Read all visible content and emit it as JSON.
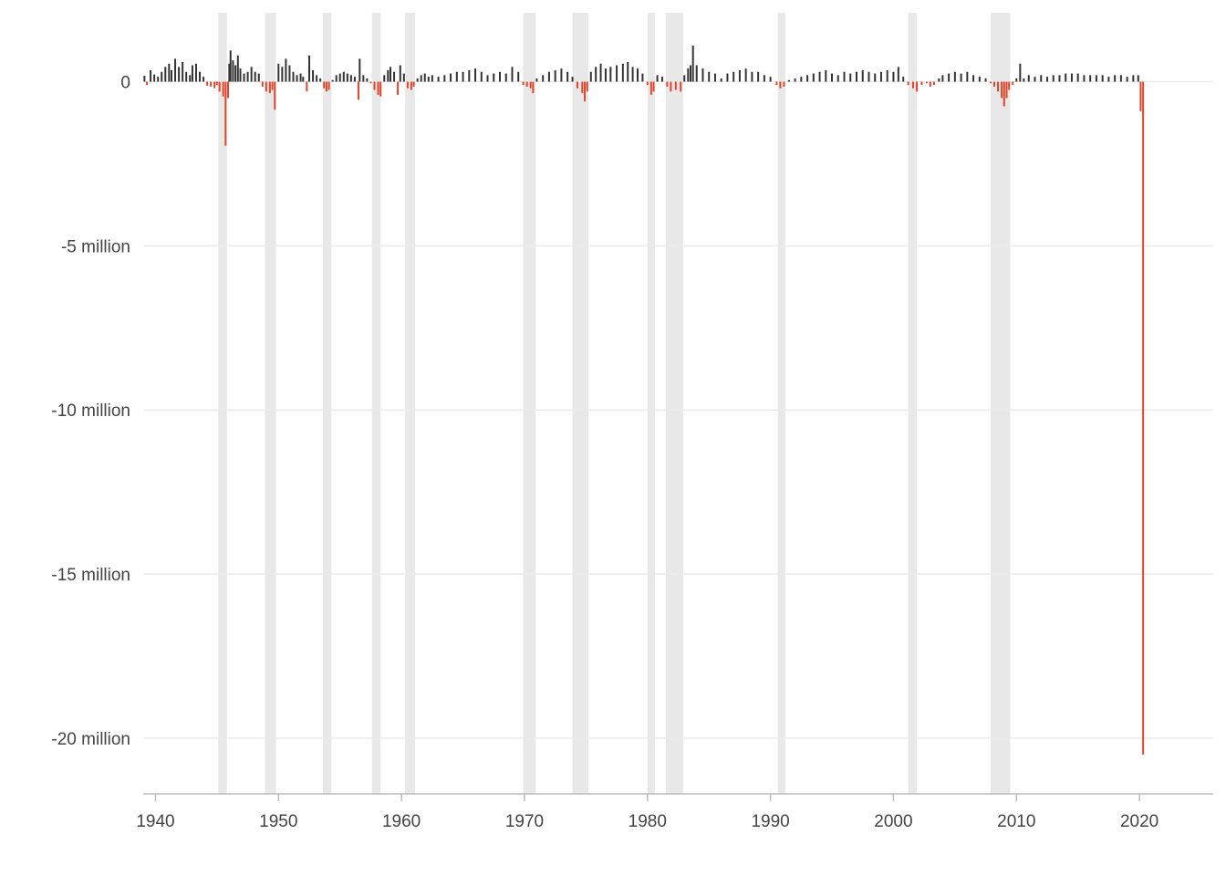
{
  "chart_data": {
    "type": "bar",
    "title": "",
    "xlabel": "",
    "ylabel": "",
    "x_range": [
      1939.0,
      2026.0
    ],
    "ylim": [
      -21.7,
      2.1
    ],
    "y_unit": "million",
    "x_ticks": [
      {
        "value": 1940,
        "label": "1940"
      },
      {
        "value": 1950,
        "label": "1950"
      },
      {
        "value": 1960,
        "label": "1960"
      },
      {
        "value": 1970,
        "label": "1970"
      },
      {
        "value": 1980,
        "label": "1980"
      },
      {
        "value": 1990,
        "label": "1990"
      },
      {
        "value": 2000,
        "label": "2000"
      },
      {
        "value": 2010,
        "label": "2010"
      },
      {
        "value": 2020,
        "label": "2020"
      }
    ],
    "y_ticks": [
      {
        "value": 0,
        "label": "0"
      },
      {
        "value": -5,
        "label": "-5 million"
      },
      {
        "value": -10,
        "label": "-10 million"
      },
      {
        "value": -15,
        "label": "-15 million"
      },
      {
        "value": -20,
        "label": "-20 million"
      }
    ],
    "grid": true,
    "colors": {
      "positive": "#333333",
      "negative": "#e0452c",
      "recession": "#e8e8e8",
      "grid": "#ebebeb",
      "axis": "#bbbbbb"
    },
    "recessions": [
      [
        1945.1,
        1945.8
      ],
      [
        1948.9,
        1949.8
      ],
      [
        1953.6,
        1954.3
      ],
      [
        1957.6,
        1958.3
      ],
      [
        1960.3,
        1961.1
      ],
      [
        1969.9,
        1970.9
      ],
      [
        1973.9,
        1975.2
      ],
      [
        1980.0,
        1980.6
      ],
      [
        1981.5,
        1982.9
      ],
      [
        1990.6,
        1991.2
      ],
      [
        2001.2,
        2001.9
      ],
      [
        2007.9,
        2009.5
      ]
    ],
    "series": [
      {
        "values": [
          [
            1939.1,
            0.18
          ],
          [
            1939.3,
            -0.1
          ],
          [
            1939.6,
            0.35
          ],
          [
            1939.9,
            0.22
          ],
          [
            1940.2,
            0.15
          ],
          [
            1940.5,
            0.3
          ],
          [
            1940.8,
            0.45
          ],
          [
            1941.1,
            0.55
          ],
          [
            1941.3,
            0.35
          ],
          [
            1941.6,
            0.7
          ],
          [
            1941.9,
            0.45
          ],
          [
            1942.2,
            0.6
          ],
          [
            1942.5,
            0.3
          ],
          [
            1942.8,
            0.2
          ],
          [
            1943.0,
            0.5
          ],
          [
            1943.3,
            0.55
          ],
          [
            1943.6,
            0.3
          ],
          [
            1943.9,
            0.15
          ],
          [
            1944.2,
            -0.12
          ],
          [
            1944.5,
            -0.15
          ],
          [
            1944.8,
            -0.2
          ],
          [
            1945.0,
            -0.1
          ],
          [
            1945.2,
            -0.3
          ],
          [
            1945.5,
            -0.45
          ],
          [
            1945.7,
            -1.95
          ],
          [
            1945.9,
            -0.5
          ],
          [
            1946.0,
            0.55
          ],
          [
            1946.1,
            0.95
          ],
          [
            1946.3,
            0.65
          ],
          [
            1946.5,
            0.5
          ],
          [
            1946.7,
            0.8
          ],
          [
            1946.9,
            0.4
          ],
          [
            1947.2,
            0.25
          ],
          [
            1947.5,
            0.3
          ],
          [
            1947.8,
            0.45
          ],
          [
            1948.1,
            0.3
          ],
          [
            1948.4,
            0.25
          ],
          [
            1948.7,
            -0.15
          ],
          [
            1949.0,
            -0.3
          ],
          [
            1949.3,
            -0.35
          ],
          [
            1949.5,
            -0.25
          ],
          [
            1949.7,
            -0.85
          ],
          [
            1950.0,
            0.55
          ],
          [
            1950.3,
            0.45
          ],
          [
            1950.6,
            0.7
          ],
          [
            1950.9,
            0.5
          ],
          [
            1951.2,
            0.3
          ],
          [
            1951.5,
            0.2
          ],
          [
            1951.8,
            0.25
          ],
          [
            1952.0,
            0.15
          ],
          [
            1952.3,
            -0.3
          ],
          [
            1952.5,
            0.8
          ],
          [
            1952.8,
            0.35
          ],
          [
            1953.1,
            0.2
          ],
          [
            1953.4,
            0.1
          ],
          [
            1953.7,
            -0.2
          ],
          [
            1953.9,
            -0.3
          ],
          [
            1954.1,
            -0.25
          ],
          [
            1954.4,
            0.05
          ],
          [
            1954.7,
            0.2
          ],
          [
            1955.0,
            0.25
          ],
          [
            1955.3,
            0.3
          ],
          [
            1955.6,
            0.25
          ],
          [
            1955.9,
            0.2
          ],
          [
            1956.2,
            0.15
          ],
          [
            1956.5,
            -0.55
          ],
          [
            1956.6,
            0.7
          ],
          [
            1956.9,
            0.2
          ],
          [
            1957.2,
            0.1
          ],
          [
            1957.5,
            -0.05
          ],
          [
            1957.8,
            -0.25
          ],
          [
            1958.1,
            -0.4
          ],
          [
            1958.3,
            -0.45
          ],
          [
            1958.6,
            0.2
          ],
          [
            1958.9,
            0.35
          ],
          [
            1959.1,
            0.45
          ],
          [
            1959.4,
            0.3
          ],
          [
            1959.7,
            -0.4
          ],
          [
            1959.9,
            0.5
          ],
          [
            1960.2,
            0.25
          ],
          [
            1960.5,
            -0.2
          ],
          [
            1960.8,
            -0.25
          ],
          [
            1961.0,
            -0.15
          ],
          [
            1961.3,
            0.1
          ],
          [
            1961.6,
            0.2
          ],
          [
            1961.9,
            0.25
          ],
          [
            1962.2,
            0.15
          ],
          [
            1962.5,
            0.2
          ],
          [
            1963.0,
            0.15
          ],
          [
            1963.5,
            0.2
          ],
          [
            1964.0,
            0.25
          ],
          [
            1964.5,
            0.3
          ],
          [
            1965.0,
            0.3
          ],
          [
            1965.5,
            0.35
          ],
          [
            1966.0,
            0.4
          ],
          [
            1966.5,
            0.3
          ],
          [
            1967.0,
            0.2
          ],
          [
            1967.5,
            0.25
          ],
          [
            1968.0,
            0.3
          ],
          [
            1968.5,
            0.25
          ],
          [
            1969.0,
            0.45
          ],
          [
            1969.5,
            0.3
          ],
          [
            1969.9,
            -0.1
          ],
          [
            1970.2,
            -0.15
          ],
          [
            1970.5,
            -0.2
          ],
          [
            1970.7,
            -0.35
          ],
          [
            1971.0,
            0.1
          ],
          [
            1971.5,
            0.2
          ],
          [
            1972.0,
            0.3
          ],
          [
            1972.5,
            0.35
          ],
          [
            1973.0,
            0.4
          ],
          [
            1973.5,
            0.3
          ],
          [
            1973.9,
            0.15
          ],
          [
            1974.3,
            -0.2
          ],
          [
            1974.7,
            -0.35
          ],
          [
            1974.9,
            -0.6
          ],
          [
            1975.1,
            -0.3
          ],
          [
            1975.4,
            0.3
          ],
          [
            1975.8,
            0.45
          ],
          [
            1976.2,
            0.55
          ],
          [
            1976.6,
            0.4
          ],
          [
            1977.0,
            0.45
          ],
          [
            1977.5,
            0.5
          ],
          [
            1978.0,
            0.55
          ],
          [
            1978.4,
            0.6
          ],
          [
            1978.8,
            0.45
          ],
          [
            1979.2,
            0.4
          ],
          [
            1979.6,
            0.25
          ],
          [
            1980.0,
            -0.1
          ],
          [
            1980.3,
            -0.4
          ],
          [
            1980.5,
            -0.3
          ],
          [
            1980.8,
            0.2
          ],
          [
            1981.2,
            0.15
          ],
          [
            1981.6,
            -0.15
          ],
          [
            1981.9,
            -0.3
          ],
          [
            1982.3,
            -0.25
          ],
          [
            1982.7,
            -0.3
          ],
          [
            1983.0,
            0.2
          ],
          [
            1983.3,
            0.4
          ],
          [
            1983.5,
            0.5
          ],
          [
            1983.7,
            1.1
          ],
          [
            1984.0,
            0.5
          ],
          [
            1984.5,
            0.4
          ],
          [
            1985.0,
            0.3
          ],
          [
            1985.5,
            0.25
          ],
          [
            1986.0,
            0.1
          ],
          [
            1986.5,
            0.25
          ],
          [
            1987.0,
            0.3
          ],
          [
            1987.5,
            0.35
          ],
          [
            1988.0,
            0.4
          ],
          [
            1988.5,
            0.3
          ],
          [
            1989.0,
            0.3
          ],
          [
            1989.5,
            0.2
          ],
          [
            1990.0,
            0.15
          ],
          [
            1990.5,
            -0.1
          ],
          [
            1990.8,
            -0.2
          ],
          [
            1991.1,
            -0.15
          ],
          [
            1991.5,
            0.05
          ],
          [
            1992.0,
            0.1
          ],
          [
            1992.5,
            0.15
          ],
          [
            1993.0,
            0.2
          ],
          [
            1993.5,
            0.25
          ],
          [
            1994.0,
            0.3
          ],
          [
            1994.5,
            0.35
          ],
          [
            1995.0,
            0.25
          ],
          [
            1995.5,
            0.2
          ],
          [
            1996.0,
            0.3
          ],
          [
            1996.5,
            0.25
          ],
          [
            1997.0,
            0.3
          ],
          [
            1997.5,
            0.35
          ],
          [
            1998.0,
            0.3
          ],
          [
            1998.5,
            0.25
          ],
          [
            1999.0,
            0.3
          ],
          [
            1999.5,
            0.35
          ],
          [
            2000.0,
            0.3
          ],
          [
            2000.4,
            0.45
          ],
          [
            2000.8,
            0.15
          ],
          [
            2001.2,
            -0.1
          ],
          [
            2001.6,
            -0.2
          ],
          [
            2001.9,
            -0.3
          ],
          [
            2002.3,
            -0.1
          ],
          [
            2002.7,
            -0.05
          ],
          [
            2003.0,
            -0.15
          ],
          [
            2003.3,
            -0.1
          ],
          [
            2003.7,
            0.1
          ],
          [
            2004.0,
            0.2
          ],
          [
            2004.5,
            0.25
          ],
          [
            2005.0,
            0.3
          ],
          [
            2005.5,
            0.25
          ],
          [
            2006.0,
            0.3
          ],
          [
            2006.5,
            0.2
          ],
          [
            2007.0,
            0.15
          ],
          [
            2007.5,
            0.1
          ],
          [
            2007.9,
            -0.05
          ],
          [
            2008.2,
            -0.15
          ],
          [
            2008.5,
            -0.3
          ],
          [
            2008.8,
            -0.5
          ],
          [
            2009.0,
            -0.75
          ],
          [
            2009.2,
            -0.5
          ],
          [
            2009.4,
            -0.25
          ],
          [
            2009.7,
            -0.1
          ],
          [
            2010.0,
            0.1
          ],
          [
            2010.3,
            0.55
          ],
          [
            2010.6,
            0.1
          ],
          [
            2011.0,
            0.2
          ],
          [
            2011.5,
            0.15
          ],
          [
            2012.0,
            0.2
          ],
          [
            2012.5,
            0.15
          ],
          [
            2013.0,
            0.2
          ],
          [
            2013.5,
            0.2
          ],
          [
            2014.0,
            0.25
          ],
          [
            2014.5,
            0.25
          ],
          [
            2015.0,
            0.25
          ],
          [
            2015.5,
            0.2
          ],
          [
            2016.0,
            0.2
          ],
          [
            2016.5,
            0.2
          ],
          [
            2017.0,
            0.2
          ],
          [
            2017.5,
            0.15
          ],
          [
            2018.0,
            0.2
          ],
          [
            2018.5,
            0.2
          ],
          [
            2019.0,
            0.15
          ],
          [
            2019.5,
            0.2
          ],
          [
            2019.9,
            0.2
          ],
          [
            2020.1,
            -0.9
          ],
          [
            2020.3,
            -20.5
          ]
        ]
      }
    ]
  }
}
